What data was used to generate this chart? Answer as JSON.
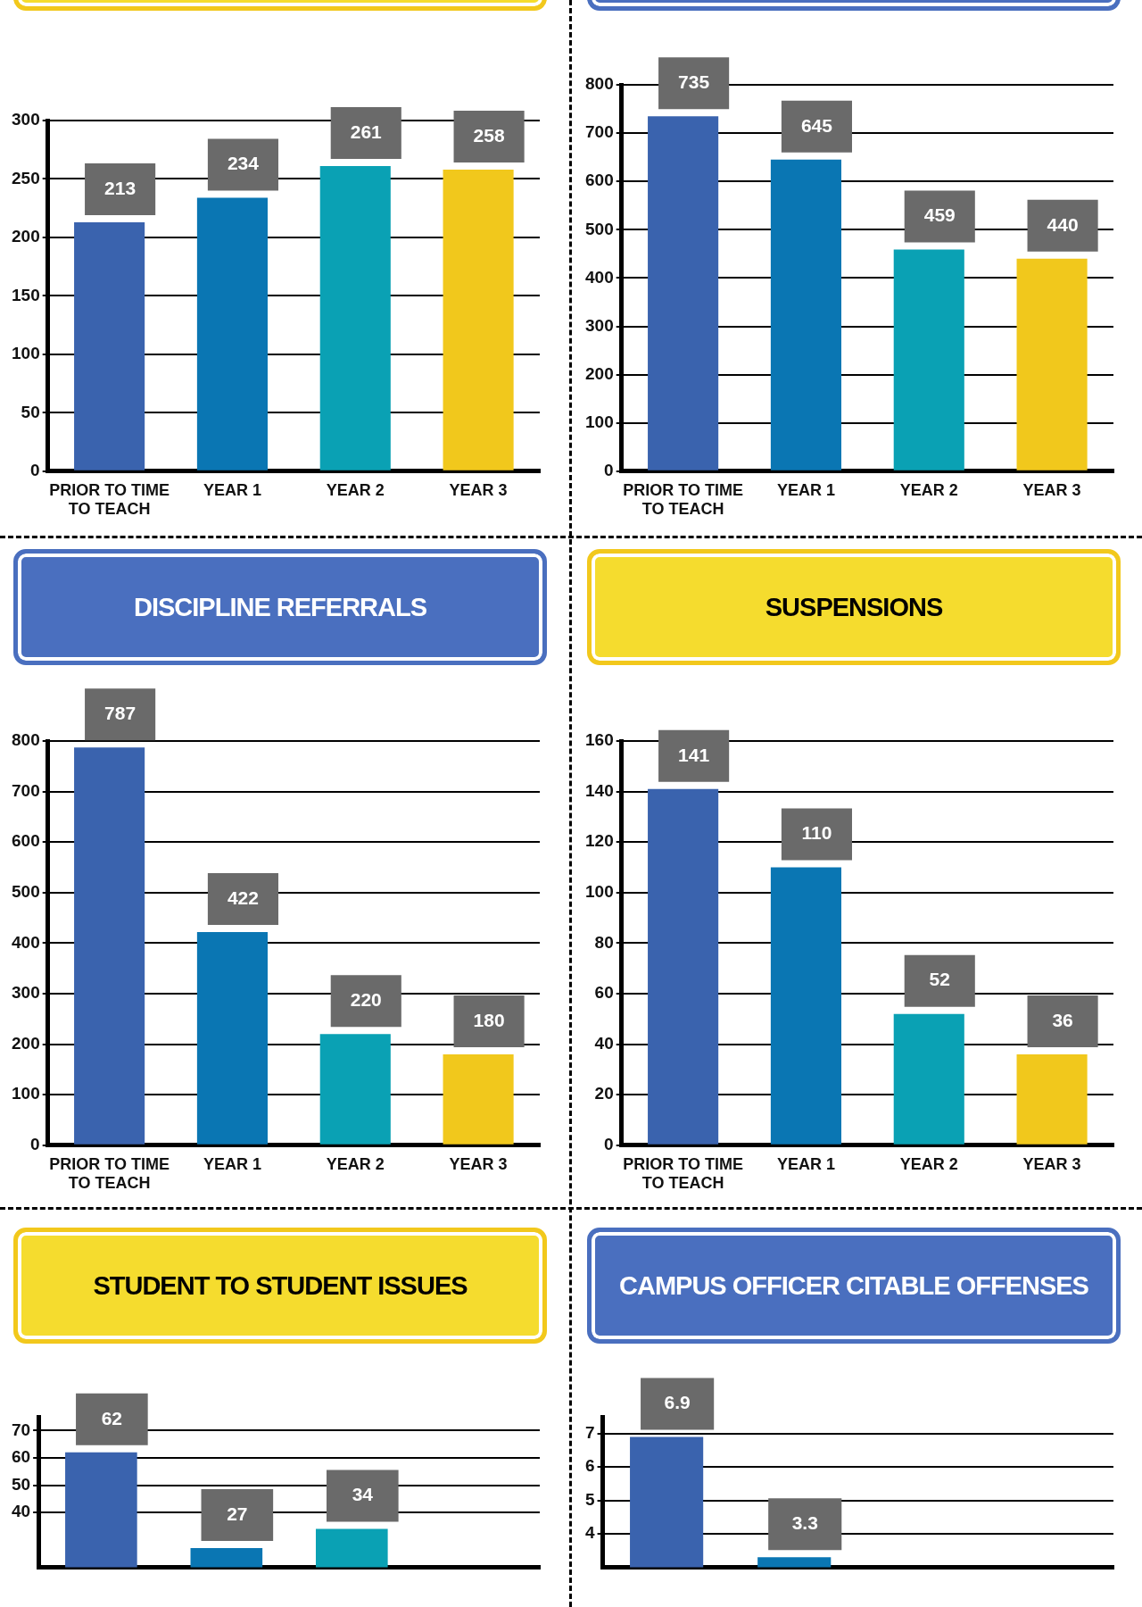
{
  "chart_data": [
    {
      "type": "bar",
      "categories": [
        "PRIOR TO TIME TO TEACH",
        "YEAR 1",
        "YEAR 2",
        "YEAR 3"
      ],
      "values": [
        213,
        234,
        261,
        258
      ],
      "colors": [
        "#3a63ae",
        "#0a76b3",
        "#0aa1b4",
        "#f1c81c"
      ],
      "ylim": [
        0,
        300
      ],
      "yticks": [
        0,
        50,
        100,
        150,
        200,
        250,
        300
      ],
      "grid": "y",
      "data_labels": true
    },
    {
      "type": "bar",
      "categories": [
        "PRIOR TO TIME TO TEACH",
        "YEAR 1",
        "YEAR 2",
        "YEAR 3"
      ],
      "values": [
        735,
        645,
        459,
        440
      ],
      "colors": [
        "#3a63ae",
        "#0a76b3",
        "#0aa1b4",
        "#f1c81c"
      ],
      "ylim": [
        0,
        800
      ],
      "yticks": [
        0,
        100,
        200,
        300,
        400,
        500,
        600,
        700,
        800
      ],
      "grid": "y",
      "data_labels": true
    },
    {
      "type": "bar",
      "title": "DISCIPLINE REFERRALS",
      "categories": [
        "PRIOR TO TIME TO TEACH",
        "YEAR 1",
        "YEAR 2",
        "YEAR 3"
      ],
      "values": [
        787,
        422,
        220,
        180
      ],
      "colors": [
        "#3a63ae",
        "#0a76b3",
        "#0aa1b4",
        "#f1c81c"
      ],
      "ylim": [
        0,
        800
      ],
      "yticks": [
        0,
        100,
        200,
        300,
        400,
        500,
        600,
        700,
        800
      ],
      "grid": "y",
      "data_labels": true
    },
    {
      "type": "bar",
      "title": "SUSPENSIONS",
      "categories": [
        "PRIOR TO TIME TO TEACH",
        "YEAR 1",
        "YEAR 2",
        "YEAR 3"
      ],
      "values": [
        141,
        110,
        52,
        36
      ],
      "colors": [
        "#3a63ae",
        "#0a76b3",
        "#0aa1b4",
        "#f1c81c"
      ],
      "ylim": [
        0,
        160
      ],
      "yticks": [
        0,
        20,
        40,
        60,
        80,
        100,
        120,
        140,
        160
      ],
      "grid": "y",
      "data_labels": true
    },
    {
      "type": "bar",
      "title": "STUDENT TO STUDENT ISSUES",
      "categories": [
        null,
        null,
        null,
        null
      ],
      "values": [
        62,
        27,
        34,
        null
      ],
      "colors": [
        "#3a63ae",
        "#0a76b3",
        "#0aa1b4",
        "#f1c81c"
      ],
      "ylim": [
        20,
        75
      ],
      "yticks": [
        40,
        50,
        60,
        70
      ],
      "grid": "y",
      "data_labels": true
    },
    {
      "type": "bar",
      "title": "CAMPUS OFFICER CITABLE OFFENSES",
      "categories": [
        null,
        null,
        null,
        null
      ],
      "values": [
        6.9,
        3.3,
        null,
        null
      ],
      "colors": [
        "#3a63ae",
        "#0a76b3",
        "#0aa1b4",
        "#f1c81c"
      ],
      "ylim": [
        3,
        7.5
      ],
      "yticks": [
        4,
        5,
        6,
        7
      ],
      "grid": "y",
      "data_labels": true
    }
  ]
}
